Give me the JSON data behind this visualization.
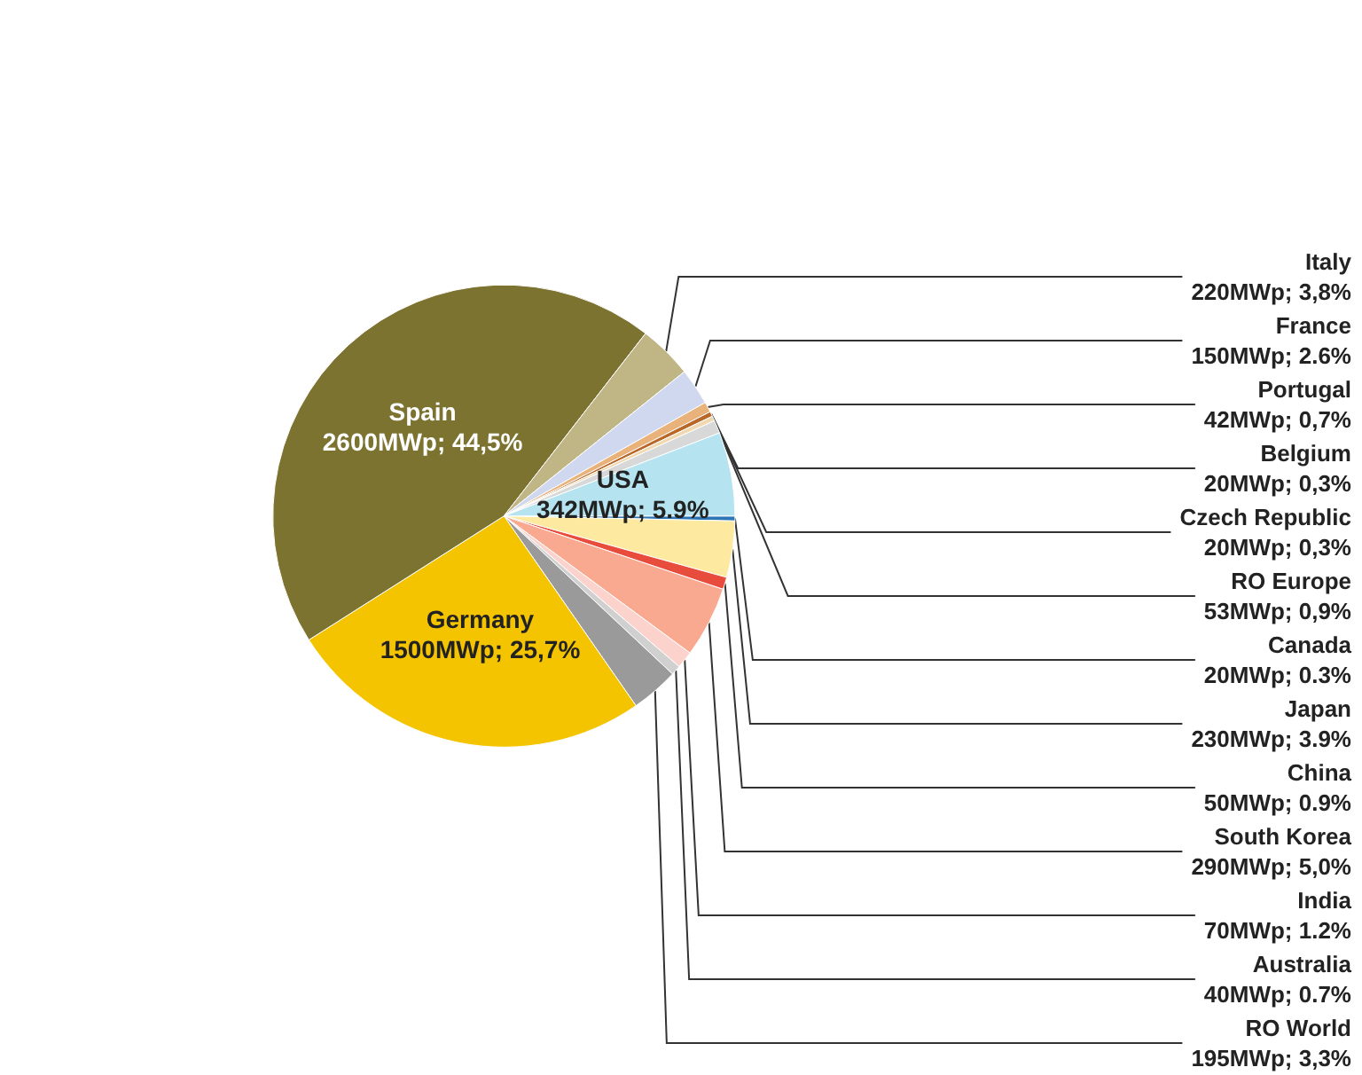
{
  "chart_data": {
    "type": "pie",
    "categories": [
      "Canada",
      "Japan",
      "China",
      "South Korea",
      "India",
      "Australia",
      "RO World",
      "Germany",
      "Spain",
      "Italy",
      "France",
      "Portugal",
      "Belgium",
      "Czech Republic",
      "RO Europe",
      "USA"
    ],
    "values": [
      20,
      230,
      50,
      290,
      70,
      40,
      195,
      1500,
      2600,
      220,
      150,
      42,
      20,
      20,
      53,
      342
    ],
    "value_labels": [
      "20MWp; 0.3%",
      "230MWp; 3.9%",
      "50MWp; 0.9%",
      "290MWp; 5,0%",
      "70MWp; 1.2%",
      "40MWp; 0.7%",
      "195MWp; 3,3%",
      "1500MWp; 25,7%",
      "2600MWp; 44,5%",
      "220MWp; 3,8%",
      "150MWp; 2.6%",
      "42MWp; 0,7%",
      "20MWp; 0,3%",
      "20MWp; 0,3%",
      "53MWp; 0,9%",
      "342MWp; 5.9%"
    ],
    "colors": [
      "#2e75b6",
      "#fde9a0",
      "#e84c3d",
      "#f8a98f",
      "#fbd3cc",
      "#d0d0d0",
      "#9a9a9a",
      "#f5c400",
      "#7d7330",
      "#bfb585",
      "#d0d8f0",
      "#e8b27a",
      "#b8682a",
      "#f0d8b0",
      "#d8d8d8",
      "#b5e3f0"
    ],
    "legend": false
  }
}
